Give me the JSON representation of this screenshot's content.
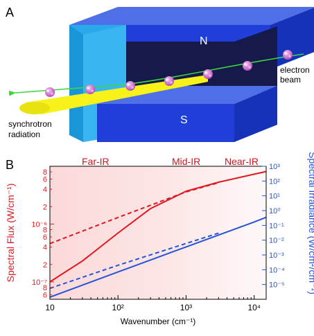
{
  "panel_a": {
    "letter": "A",
    "north_label": "N",
    "south_label": "S",
    "electron_label_line1": "electron",
    "electron_label_line2": "beam",
    "synchrotron_label_line1": "synchrotron",
    "synchrotron_label_line2": "radiation"
  },
  "panel_b": {
    "letter": "B",
    "regions": [
      "Far-IR",
      "Mid-IR",
      "Near-IR"
    ],
    "xlabel": "Wavenumber (cm⁻¹)",
    "ylabel_left": "Spectral Flux (W/cm⁻¹)",
    "ylabel_right": "Spectral Irradiance (W/cm²/cm⁻¹)"
  },
  "chart_data": {
    "type": "line",
    "x_scale": "log",
    "xlim": [
      10,
      15000
    ],
    "x_ticks": [
      "10",
      "10²",
      "10³",
      "10⁴"
    ],
    "y_left": {
      "scale": "log",
      "ylim": [
        5e-08,
        1e-05
      ],
      "major_ticks": [
        "10⁻⁷",
        "10⁻⁶"
      ],
      "minor_tick_labels": [
        "6",
        "8",
        "2",
        "4",
        "6",
        "8",
        "2",
        "4",
        "6",
        "8"
      ]
    },
    "y_right": {
      "scale": "log",
      "ylim": [
        1e-06,
        1000.0
      ],
      "ticks": [
        "10⁻⁵",
        "10⁻⁴",
        "10⁻³",
        "10⁻²",
        "10⁻¹",
        "10⁰",
        "10¹",
        "10²",
        "10³"
      ]
    },
    "series": [
      {
        "axis": "left",
        "style": "solid",
        "color": "#e0181e",
        "x": [
          10,
          30,
          100,
          300,
          1000,
          3000,
          10000,
          15000
        ],
        "y": [
          1e-07,
          2.3e-07,
          7e-07,
          1.85e-06,
          3.7e-06,
          5.3e-06,
          7.3e-06,
          8.1e-06
        ]
      },
      {
        "axis": "left",
        "style": "dashed",
        "color": "#e0181e",
        "x": [
          10,
          100,
          1000,
          3000
        ],
        "y": [
          4.6e-07,
          1.3e-06,
          3.6e-06,
          5.2e-06
        ]
      },
      {
        "axis": "right",
        "style": "solid",
        "color": "#2453d8",
        "x": [
          10,
          100,
          1000,
          10000,
          15000
        ],
        "y": [
          1.4e-06,
          7e-05,
          0.0035,
          0.17,
          0.35
        ]
      },
      {
        "axis": "right",
        "style": "dashed",
        "color": "#2453d8",
        "x": [
          10,
          100,
          1000,
          3000
        ],
        "y": [
          5.5e-06,
          0.0002,
          0.006,
          0.03
        ]
      }
    ],
    "colors": {
      "flux": "#e0181e",
      "irradiance": "#2453d8",
      "far_ir_band": "#fbd9d9",
      "mid_ir_band": "#fde6e6",
      "near_ir_band": "#fef6f6"
    }
  }
}
